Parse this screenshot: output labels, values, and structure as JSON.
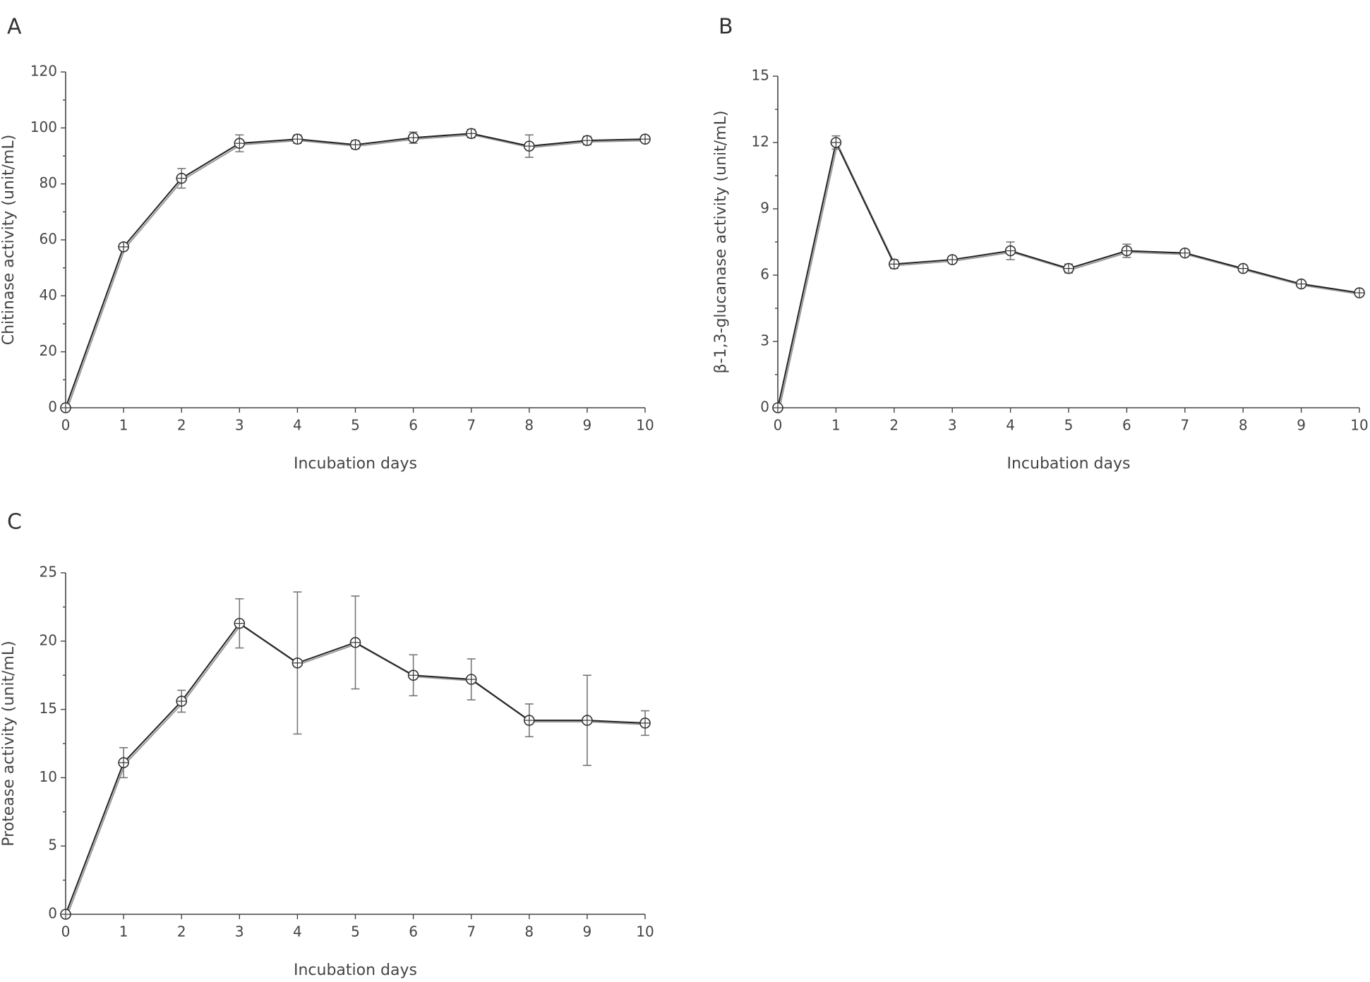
{
  "chart_data": [
    {
      "type": "line",
      "panel": "A",
      "xlabel": "Incubation days",
      "ylabel": "Chitinase activity (unit/mL)",
      "x": [
        0,
        1,
        2,
        3,
        4,
        5,
        6,
        7,
        8,
        9,
        10
      ],
      "xlim": [
        0,
        10
      ],
      "ylim": [
        0,
        120
      ],
      "xticks": [
        0,
        1,
        2,
        3,
        4,
        5,
        6,
        7,
        8,
        9,
        10
      ],
      "yticks": [
        0,
        20,
        40,
        60,
        80,
        100,
        120
      ],
      "series": [
        {
          "values": [
            0,
            57.5,
            82,
            94.5,
            96,
            94,
            96.5,
            98,
            93.5,
            95.5,
            96
          ],
          "errors": [
            0,
            1.2,
            3.5,
            3,
            1.5,
            1.5,
            2,
            1.5,
            4,
            1.5,
            1
          ]
        }
      ]
    },
    {
      "type": "line",
      "panel": "B",
      "xlabel": "Incubation days",
      "ylabel": "β-1,3-glucanase activity (unit/mL)",
      "x": [
        0,
        1,
        2,
        3,
        4,
        5,
        6,
        7,
        8,
        9,
        10
      ],
      "xlim": [
        0,
        10
      ],
      "ylim": [
        0,
        15
      ],
      "xticks": [
        0,
        1,
        2,
        3,
        4,
        5,
        6,
        7,
        8,
        9,
        10
      ],
      "yticks": [
        0,
        3,
        6,
        9,
        12,
        15
      ],
      "series": [
        {
          "values": [
            0,
            12,
            6.5,
            6.7,
            7.1,
            6.3,
            7.1,
            7,
            6.3,
            5.6,
            5.2
          ],
          "errors": [
            0,
            0.3,
            0.2,
            0.15,
            0.4,
            0.2,
            0.3,
            0.15,
            0.15,
            0.1,
            0.15
          ]
        }
      ]
    },
    {
      "type": "line",
      "panel": "C",
      "xlabel": "Incubation days",
      "ylabel": "Protease activity (unit/mL)",
      "x": [
        0,
        1,
        2,
        3,
        4,
        5,
        6,
        7,
        8,
        9,
        10
      ],
      "xlim": [
        0,
        10
      ],
      "ylim": [
        0,
        25
      ],
      "xticks": [
        0,
        1,
        2,
        3,
        4,
        5,
        6,
        7,
        8,
        9,
        10
      ],
      "yticks": [
        0,
        5,
        10,
        15,
        20,
        25
      ],
      "series": [
        {
          "values": [
            0,
            11.1,
            15.6,
            21.3,
            18.4,
            19.9,
            17.5,
            17.2,
            14.2,
            14.2,
            14
          ],
          "errors": [
            0,
            1.1,
            0.8,
            1.8,
            5.2,
            3.4,
            1.5,
            1.5,
            1.2,
            3.3,
            0.9
          ]
        }
      ]
    }
  ]
}
